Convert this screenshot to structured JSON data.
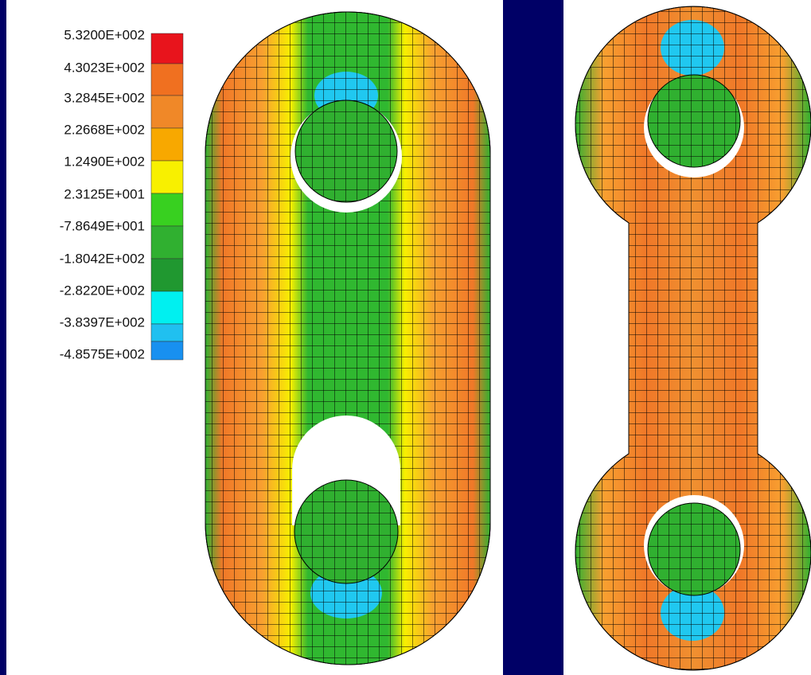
{
  "legend": {
    "labels": [
      "5.3200E+002",
      "4.3023E+002",
      "3.2845E+002",
      "2.2668E+002",
      "1.2490E+002",
      "2.3125E+001",
      "-7.8649E+001",
      "-1.8042E+002",
      "-2.8220E+002",
      "-3.8397E+002",
      "-4.8575E+002"
    ]
  }
}
